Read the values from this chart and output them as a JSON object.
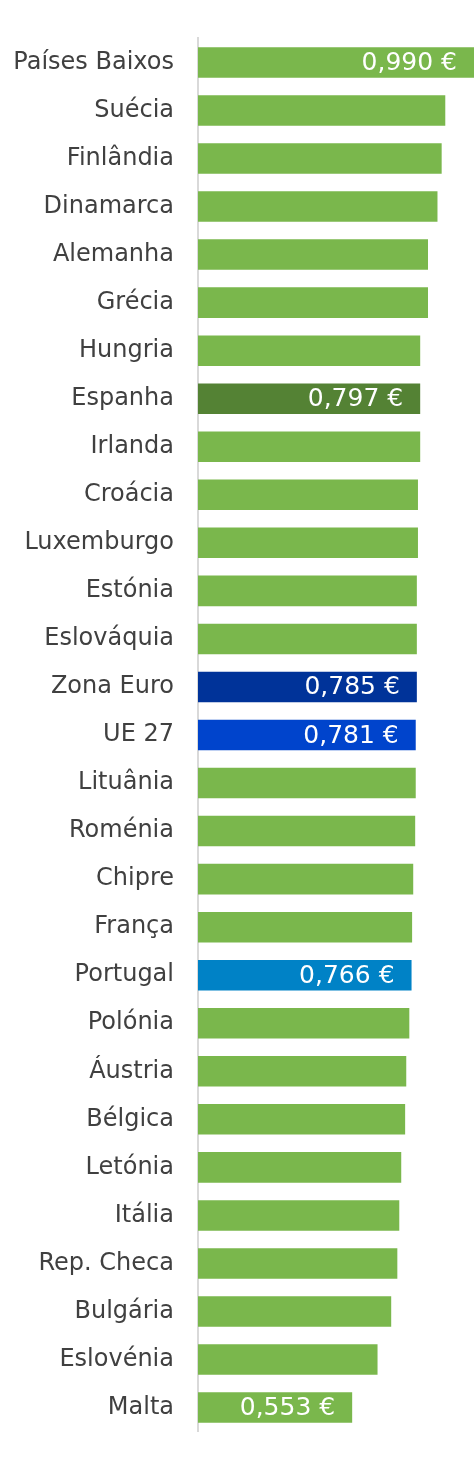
{
  "chart_data": {
    "type": "bar",
    "orientation": "horizontal",
    "categories": [
      "Países Baixos",
      "Suécia",
      "Finlândia",
      "Dinamarca",
      "Alemanha",
      "Grécia",
      "Hungria",
      "Espanha",
      "Irlanda",
      "Croácia",
      "Luxemburgo",
      "Estónia",
      "Eslováquia",
      "Zona Euro",
      "UE 27",
      "Lituânia",
      "Roménia",
      "Chipre",
      "França",
      "Portugal",
      "Polónia",
      "Áustria",
      "Bélgica",
      "Letónia",
      "Itália",
      "Rep. Checa",
      "Bulgária",
      "Eslovénia",
      "Malta"
    ],
    "values": [
      0.99,
      0.887,
      0.874,
      0.859,
      0.825,
      0.825,
      0.797,
      0.797,
      0.797,
      0.789,
      0.789,
      0.785,
      0.785,
      0.785,
      0.781,
      0.781,
      0.779,
      0.772,
      0.768,
      0.766,
      0.758,
      0.747,
      0.743,
      0.729,
      0.722,
      0.715,
      0.693,
      0.644,
      0.553
    ],
    "colors": [
      "#7ab74c",
      "#7ab74c",
      "#7ab74c",
      "#7ab74c",
      "#7ab74c",
      "#7ab74c",
      "#7ab74c",
      "#548234",
      "#7ab74c",
      "#7ab74c",
      "#7ab74c",
      "#7ab74c",
      "#7ab74c",
      "#003399",
      "#0044cc",
      "#7ab74c",
      "#7ab74c",
      "#7ab74c",
      "#7ab74c",
      "#0082c6",
      "#7ab74c",
      "#7ab74c",
      "#7ab74c",
      "#7ab74c",
      "#7ab74c",
      "#7ab74c",
      "#7ab74c",
      "#7ab74c",
      "#7ab74c"
    ],
    "value_labels": [
      "0,990 €",
      null,
      null,
      null,
      null,
      null,
      null,
      "0,797 €",
      null,
      null,
      null,
      null,
      null,
      "0,785 €",
      "0,781 €",
      null,
      null,
      null,
      null,
      "0,766 €",
      null,
      null,
      null,
      null,
      null,
      null,
      null,
      null,
      "0,553 €"
    ],
    "xlim": [
      0,
      0.99
    ],
    "tick_labels": "y"
  }
}
